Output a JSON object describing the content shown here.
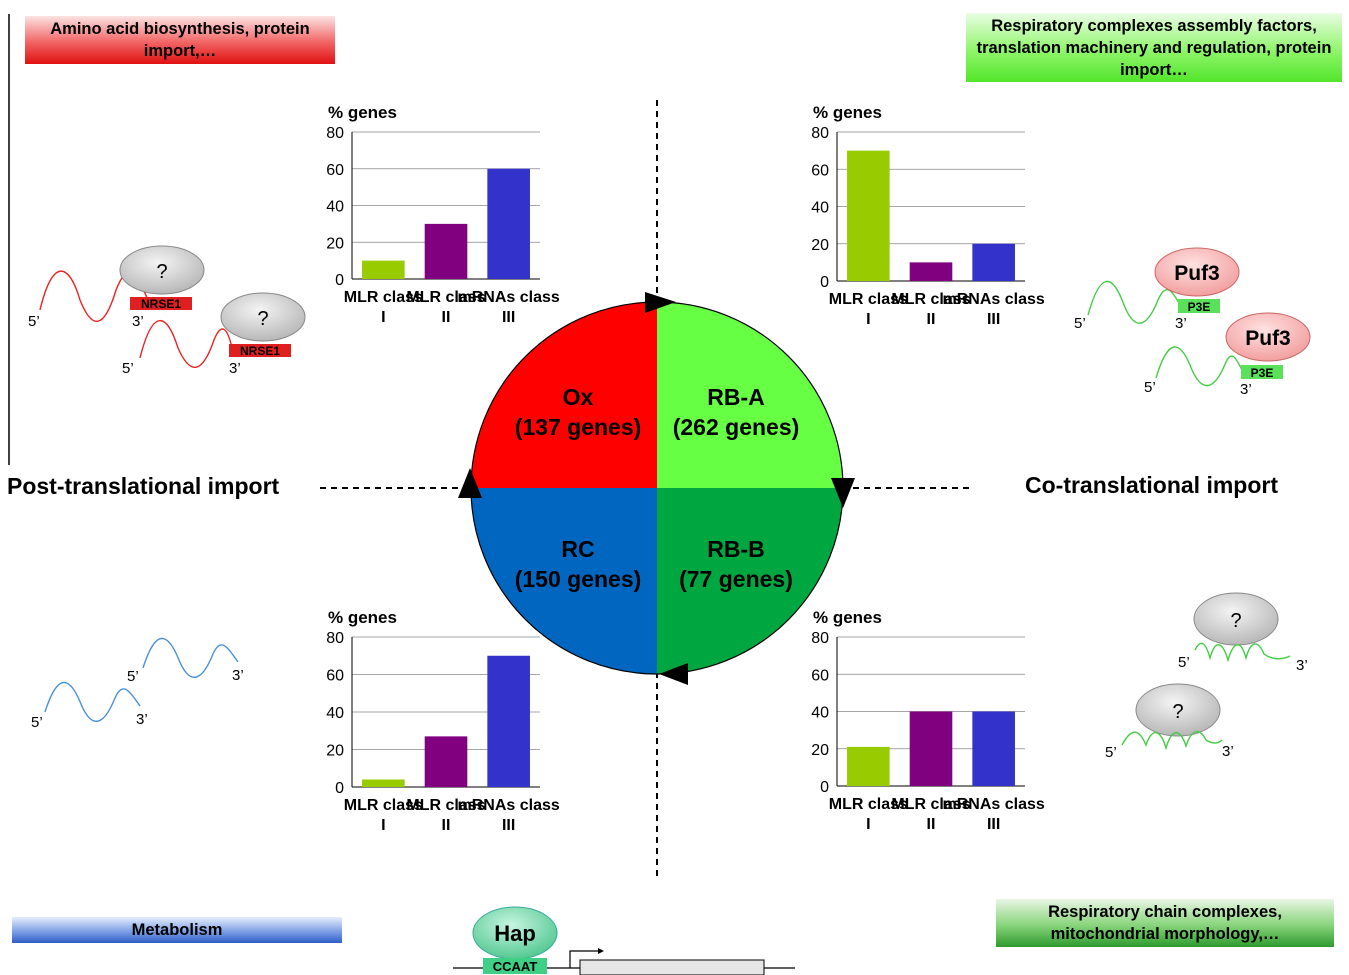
{
  "labels": {
    "top_left_box": "Amino acid biosynthesis, protein import,…",
    "top_right_box": "Respiratory complexes assembly factors, translation machinery and regulation, protein import…",
    "bottom_left_box": "Metabolism",
    "bottom_right_box": "Respiratory chain complexes, mitochondrial morphology,…",
    "post_translational": "Post-translational import",
    "co_translational": "Co-translational import",
    "hap": "Hap",
    "ccaat": "CCAAT"
  },
  "quadrants": {
    "ox": {
      "name": "Ox",
      "genes": "(137 genes)",
      "color": "#fe0000"
    },
    "rba": {
      "name": "RB-A",
      "genes": "(262 genes)",
      "color": "#66ff44"
    },
    "rc": {
      "name": "RC",
      "genes": "(150 genes)",
      "color": "#0066bf"
    },
    "rbb": {
      "name": "RB-B",
      "genes": "(77 genes)",
      "color": "#00a640"
    }
  },
  "mrna": {
    "five_prime": "5’",
    "three_prime": "3’",
    "question": "?",
    "nrse1": "NRSE1",
    "puf3": "Puf3",
    "p3e": "P3E"
  },
  "chart_data": [
    {
      "type": "bar",
      "quadrant": "Ox",
      "ylabel": "% genes",
      "ylim": [
        0,
        80
      ],
      "yticks": [
        0,
        20,
        40,
        60,
        80
      ],
      "categories": [
        "MLR class I",
        "MLR class II",
        "mRNAs class III"
      ],
      "values": [
        10,
        30,
        60
      ],
      "colors": [
        "#99cc00",
        "#800080",
        "#3333cc"
      ]
    },
    {
      "type": "bar",
      "quadrant": "RB-A",
      "ylabel": "% genes",
      "ylim": [
        0,
        80
      ],
      "yticks": [
        0,
        20,
        40,
        60,
        80
      ],
      "categories": [
        "MLR class I",
        "MLR class II",
        "mRNAs class III"
      ],
      "values": [
        70,
        10,
        20
      ],
      "colors": [
        "#99cc00",
        "#800080",
        "#3333cc"
      ]
    },
    {
      "type": "bar",
      "quadrant": "RC",
      "ylabel": "% genes",
      "ylim": [
        0,
        80
      ],
      "yticks": [
        0,
        20,
        40,
        60,
        80
      ],
      "categories": [
        "MLR class I",
        "MLR class II",
        "mRNAs class III"
      ],
      "values": [
        4,
        27,
        70
      ],
      "colors": [
        "#99cc00",
        "#800080",
        "#3333cc"
      ]
    },
    {
      "type": "bar",
      "quadrant": "RB-B",
      "ylabel": "% genes",
      "ylim": [
        0,
        80
      ],
      "yticks": [
        0,
        20,
        40,
        60,
        80
      ],
      "categories": [
        "MLR class I",
        "MLR class II",
        "mRNAs class III"
      ],
      "values": [
        21,
        40,
        40
      ],
      "colors": [
        "#99cc00",
        "#800080",
        "#3333cc"
      ]
    }
  ]
}
